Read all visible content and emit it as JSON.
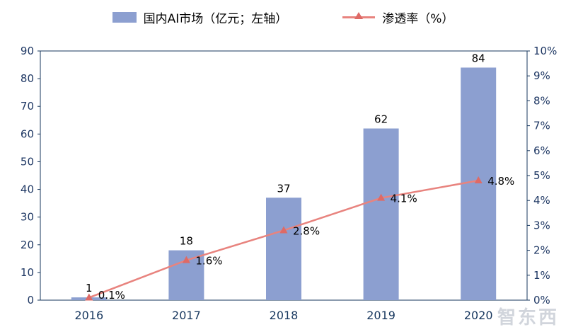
{
  "legend": [
    {
      "label": "国内AI市场（亿元；左轴）",
      "color": "#8c9fd0",
      "marker_color": "#8c9fd0",
      "type": "bar"
    },
    {
      "label": "渗透率（%）",
      "color": "#e8837e",
      "marker_color": "#de6a66",
      "type": "line"
    }
  ],
  "watermark": "智东西",
  "chart_data": {
    "type": "bar",
    "subtype": "bar+line combo",
    "categories": [
      "2016",
      "2017",
      "2018",
      "2019",
      "2020"
    ],
    "series": [
      {
        "name": "国内AI市场（亿元；左轴）",
        "type": "bar",
        "axis": "left",
        "values": [
          1,
          18,
          37,
          62,
          84
        ],
        "labels": [
          "1",
          "18",
          "37",
          "62",
          "84"
        ],
        "color": "#8c9fd0"
      },
      {
        "name": "渗透率（%）",
        "type": "line",
        "axis": "right",
        "values": [
          0.1,
          1.6,
          2.8,
          4.1,
          4.8
        ],
        "labels": [
          "0.1%",
          "1.6%",
          "2.8%",
          "4.1%",
          "4.8%"
        ],
        "color": "#e8837e",
        "marker": "triangle",
        "marker_color": "#de6a66"
      }
    ],
    "left_axis": {
      "min": 0,
      "max": 90,
      "step": 10,
      "ticks": [
        "0",
        "10",
        "20",
        "30",
        "40",
        "50",
        "60",
        "70",
        "80",
        "90"
      ]
    },
    "right_axis": {
      "min": 0,
      "max": 10,
      "step": 1,
      "ticks": [
        "0%",
        "1%",
        "2%",
        "3%",
        "4%",
        "5%",
        "6%",
        "7%",
        "8%",
        "9%",
        "10%"
      ]
    },
    "grid": false,
    "legend_position": "top",
    "plot_border_color": "#17375e"
  }
}
